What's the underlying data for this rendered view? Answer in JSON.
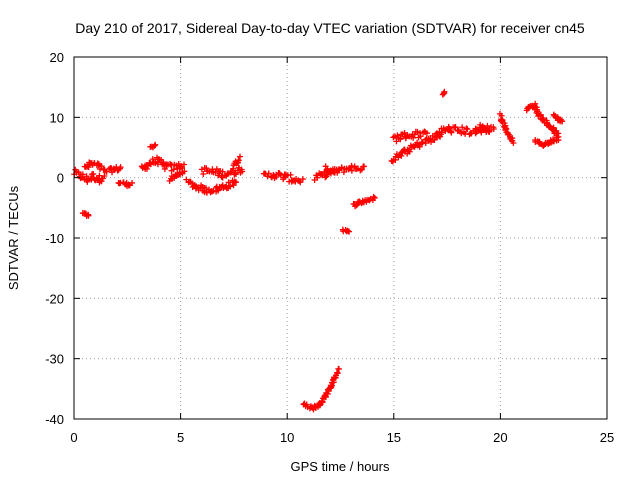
{
  "chart_data": {
    "type": "scatter",
    "title": "Day 210 of 2017, Sidereal Day-to-day VTEC variation (SDTVAR) for receiver cn45",
    "xlabel": "GPS time / hours",
    "ylabel": "SDTVAR / TECUs",
    "xlim": [
      0,
      25
    ],
    "ylim": [
      -40,
      20
    ],
    "xticks": [
      0,
      5,
      10,
      15,
      20,
      25
    ],
    "yticks": [
      -40,
      -30,
      -20,
      -10,
      0,
      10,
      20
    ],
    "xtick_labels": [
      "0",
      "5",
      "10",
      "15",
      "20",
      "25"
    ],
    "ytick_labels": [
      "-40",
      "-30",
      "-20",
      "-10",
      "0",
      "10",
      "20"
    ],
    "grid": true,
    "marker": "+",
    "color": "#ff0000",
    "segments": [
      {
        "name": "s1",
        "points": [
          [
            0.0,
            0.8
          ],
          [
            0.3,
            0.3
          ],
          [
            0.6,
            -0.3
          ],
          [
            0.9,
            0.2
          ],
          [
            1.2,
            -0.2
          ],
          [
            1.4,
            0.3
          ]
        ],
        "spread": 0.6
      },
      {
        "name": "s2",
        "points": [
          [
            0.5,
            1.5
          ],
          [
            0.8,
            2.3
          ],
          [
            1.1,
            2.0
          ],
          [
            1.3,
            1.6
          ]
        ],
        "spread": 0.5
      },
      {
        "name": "s3",
        "points": [
          [
            1.4,
            1.0
          ],
          [
            1.8,
            1.3
          ],
          [
            2.2,
            1.6
          ]
        ],
        "spread": 0.4
      },
      {
        "name": "s4",
        "points": [
          [
            2.1,
            -0.8
          ],
          [
            2.5,
            -1.1
          ],
          [
            2.7,
            -1.0
          ]
        ],
        "spread": 0.3
      },
      {
        "name": "s5",
        "points": [
          [
            0.4,
            -5.8
          ],
          [
            0.7,
            -6.4
          ]
        ],
        "spread": 0.2
      },
      {
        "name": "s6",
        "points": [
          [
            3.2,
            1.5
          ],
          [
            3.6,
            2.5
          ],
          [
            3.9,
            2.8
          ],
          [
            4.2,
            2.0
          ],
          [
            4.6,
            1.6
          ],
          [
            5.0,
            2.0
          ],
          [
            5.2,
            1.6
          ]
        ],
        "spread": 0.6
      },
      {
        "name": "s7",
        "points": [
          [
            3.6,
            5.0
          ],
          [
            3.8,
            5.4
          ]
        ],
        "spread": 0.2
      },
      {
        "name": "s8",
        "points": [
          [
            4.5,
            -0.3
          ],
          [
            4.8,
            0.3
          ],
          [
            5.1,
            1.0
          ]
        ],
        "spread": 0.3
      },
      {
        "name": "s9",
        "points": [
          [
            5.3,
            -0.8
          ],
          [
            5.7,
            -1.4
          ],
          [
            6.2,
            -2.1
          ],
          [
            6.7,
            -1.9
          ],
          [
            7.2,
            -1.3
          ],
          [
            7.6,
            -0.7
          ]
        ],
        "spread": 0.5
      },
      {
        "name": "s10",
        "points": [
          [
            6.0,
            1.2
          ],
          [
            6.5,
            1.0
          ],
          [
            7.0,
            0.6
          ],
          [
            7.5,
            1.0
          ],
          [
            7.9,
            1.5
          ]
        ],
        "spread": 0.6
      },
      {
        "name": "s11",
        "points": [
          [
            7.5,
            2.3
          ],
          [
            7.8,
            3.2
          ]
        ],
        "spread": 0.3
      },
      {
        "name": "s12",
        "points": [
          [
            8.9,
            0.2
          ],
          [
            9.4,
            0.5
          ],
          [
            9.9,
            0.1
          ],
          [
            10.3,
            -0.3
          ],
          [
            10.7,
            -0.5
          ]
        ],
        "spread": 0.6
      },
      {
        "name": "s13",
        "points": [
          [
            11.3,
            0.0
          ],
          [
            11.8,
            0.6
          ],
          [
            12.4,
            1.2
          ],
          [
            13.0,
            1.6
          ],
          [
            13.6,
            1.6
          ]
        ],
        "spread": 0.5
      },
      {
        "name": "s14",
        "points": [
          [
            11.8,
            1.6
          ],
          [
            12.2,
            1.0
          ]
        ],
        "spread": 0.3
      },
      {
        "name": "s15",
        "points": [
          [
            12.6,
            -8.6
          ],
          [
            12.9,
            -9.1
          ]
        ],
        "spread": 0.2
      },
      {
        "name": "s16",
        "points": [
          [
            13.1,
            -4.5
          ],
          [
            13.6,
            -3.9
          ],
          [
            14.1,
            -3.4
          ]
        ],
        "spread": 0.3
      },
      {
        "name": "s17",
        "points": [
          [
            10.8,
            -37.6
          ],
          [
            11.2,
            -38.2
          ],
          [
            11.5,
            -37.6
          ],
          [
            11.8,
            -36.2
          ],
          [
            12.1,
            -34.2
          ],
          [
            12.4,
            -31.8
          ]
        ],
        "spread": 0.3
      },
      {
        "name": "s18",
        "points": [
          [
            15.0,
            6.5
          ],
          [
            15.6,
            7.0
          ],
          [
            16.2,
            7.2
          ],
          [
            16.6,
            7.0
          ]
        ],
        "spread": 0.6
      },
      {
        "name": "s19",
        "points": [
          [
            14.9,
            3.0
          ],
          [
            15.5,
            4.2
          ],
          [
            16.1,
            5.4
          ],
          [
            16.7,
            6.3
          ],
          [
            17.2,
            6.9
          ]
        ],
        "spread": 0.5
      },
      {
        "name": "s20",
        "points": [
          [
            17.0,
            7.5
          ],
          [
            17.6,
            8.0
          ],
          [
            18.2,
            7.8
          ],
          [
            18.8,
            7.6
          ],
          [
            19.3,
            8.1
          ],
          [
            19.7,
            8.3
          ]
        ],
        "spread": 0.6
      },
      {
        "name": "s21",
        "points": [
          [
            17.3,
            13.8
          ],
          [
            17.4,
            14.1
          ]
        ],
        "spread": 0.2
      },
      {
        "name": "s22",
        "points": [
          [
            19.0,
            8.6
          ],
          [
            19.5,
            7.6
          ]
        ],
        "spread": 0.3
      },
      {
        "name": "s23",
        "points": [
          [
            20.0,
            10.3
          ],
          [
            20.2,
            8.5
          ],
          [
            20.4,
            7.0
          ],
          [
            20.6,
            6.0
          ]
        ],
        "spread": 0.3
      },
      {
        "name": "s24",
        "points": [
          [
            21.2,
            11.3
          ],
          [
            21.6,
            12.0
          ],
          [
            21.8,
            10.5
          ],
          [
            22.2,
            9.0
          ],
          [
            22.6,
            7.5
          ],
          [
            22.7,
            7.0
          ]
        ],
        "spread": 0.3
      },
      {
        "name": "s25",
        "points": [
          [
            21.6,
            6.0
          ],
          [
            22.0,
            5.5
          ],
          [
            22.4,
            6.0
          ],
          [
            22.7,
            6.5
          ]
        ],
        "spread": 0.3
      },
      {
        "name": "s26",
        "points": [
          [
            22.5,
            10.5
          ],
          [
            22.7,
            9.8
          ],
          [
            22.9,
            9.3
          ]
        ],
        "spread": 0.3
      }
    ]
  }
}
